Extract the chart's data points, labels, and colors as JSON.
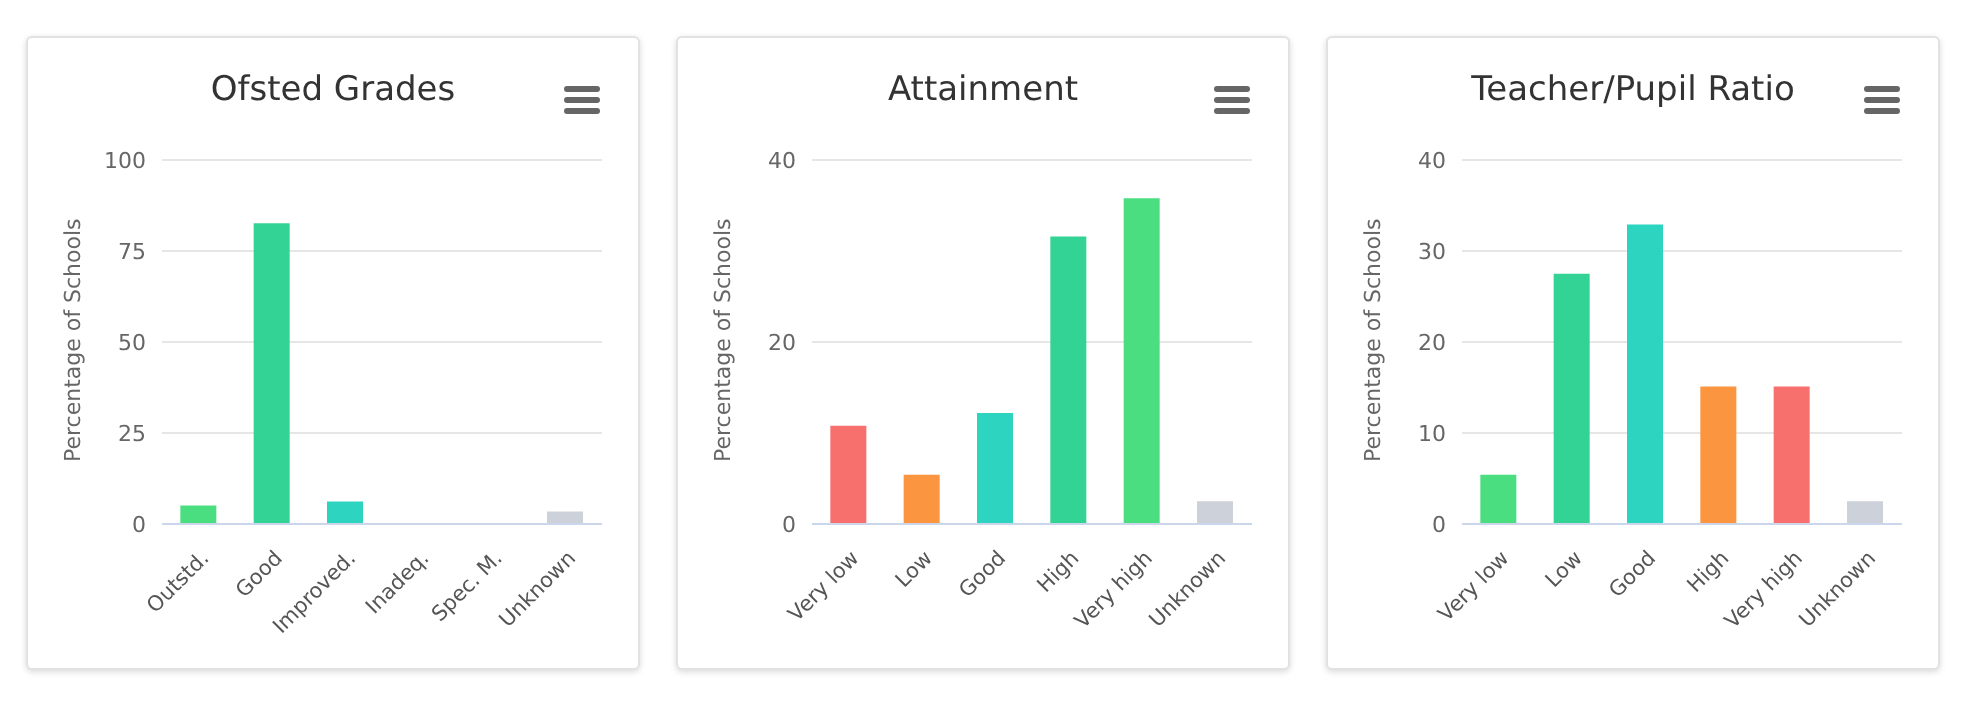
{
  "chart_data": [
    {
      "type": "bar",
      "title": "Ofsted Grades",
      "ylabel": "Percentage of Schools",
      "categories": [
        "Outstd.",
        "Good",
        "Improved.",
        "Inadeq.",
        "Spec. M.",
        "Unknown"
      ],
      "values": [
        5.1,
        82.6,
        6.2,
        0,
        0,
        3.4
      ],
      "colors": [
        "#4ade80",
        "#33d396",
        "#2dd4c0",
        "#fb9540",
        "#f7706e",
        "#cdd1da"
      ],
      "ylim": [
        0,
        100
      ],
      "yticks": [
        0,
        25,
        50,
        75,
        100
      ],
      "grid": "y",
      "legend": false
    },
    {
      "type": "bar",
      "title": "Attainment",
      "ylabel": "Percentage of Schools",
      "categories": [
        "Very low",
        "Low",
        "Good",
        "High",
        "Very high",
        "Unknown"
      ],
      "values": [
        10.8,
        5.4,
        12.2,
        31.6,
        35.8,
        2.5
      ],
      "colors": [
        "#f7706e",
        "#fb9540",
        "#2dd4c0",
        "#33d396",
        "#4ade80",
        "#cdd1da"
      ],
      "ylim": [
        0,
        40
      ],
      "yticks": [
        0,
        20,
        40
      ],
      "grid": "y",
      "legend": false
    },
    {
      "type": "bar",
      "title": "Teacher/Pupil Ratio",
      "ylabel": "Percentage of Schools",
      "categories": [
        "Very low",
        "Low",
        "Good",
        "High",
        "Very high",
        "Unknown"
      ],
      "values": [
        5.4,
        27.5,
        32.9,
        15.1,
        15.1,
        2.5
      ],
      "colors": [
        "#4ade80",
        "#33d396",
        "#2dd4c0",
        "#fb9540",
        "#f7706e",
        "#cdd1da"
      ],
      "ylim": [
        0,
        40
      ],
      "yticks": [
        0,
        10,
        20,
        30,
        40
      ],
      "grid": "y",
      "legend": false
    }
  ]
}
